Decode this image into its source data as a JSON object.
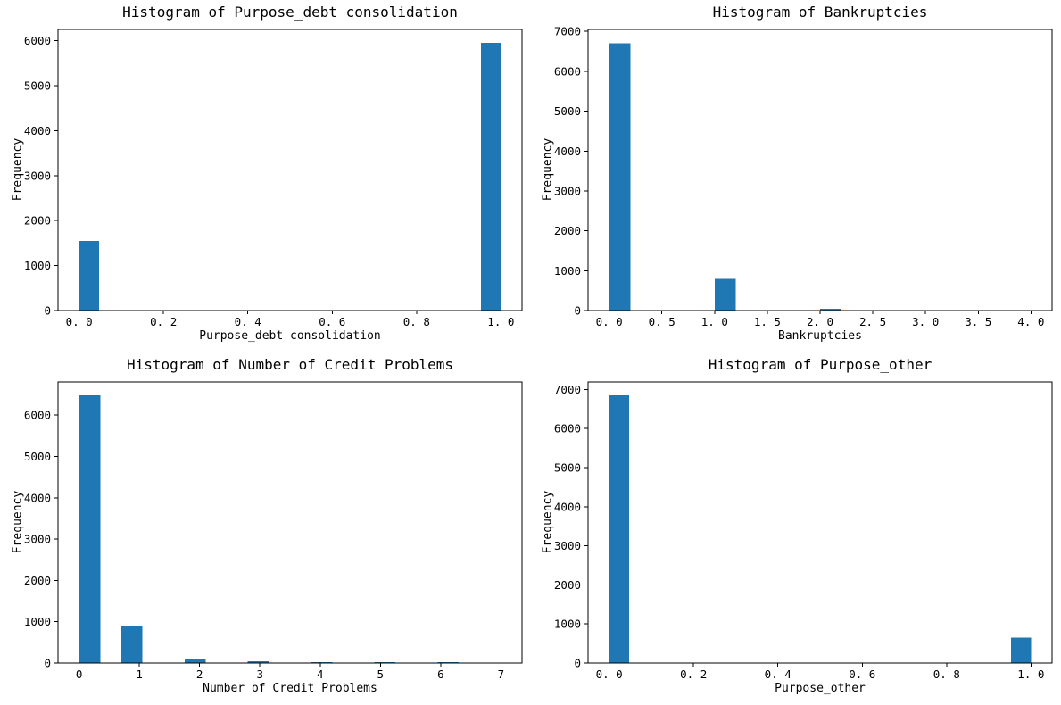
{
  "figure": {
    "background": "#ffffff",
    "bar_color": "#1f77b4",
    "axis_color": "#000000",
    "layout": "2x2-grid",
    "grid": "off",
    "legend": "none"
  },
  "chart_data": [
    {
      "type": "bar",
      "title": "Histogram of Purpose_debt consolidation",
      "xlabel": "Purpose_debt consolidation",
      "ylabel": "Frequency",
      "xlim": [
        -0.05,
        1.05
      ],
      "ylim": [
        0,
        6248
      ],
      "xticks": {
        "values": [
          0.0,
          0.2,
          0.4,
          0.6,
          0.8,
          1.0
        ],
        "labels": [
          "0. 0",
          "0. 2",
          "0. 4",
          "0. 6",
          "0. 8",
          "1. 0"
        ]
      },
      "yticks": {
        "values": [
          0,
          1000,
          2000,
          3000,
          4000,
          5000,
          6000
        ],
        "labels": [
          "0",
          "1000",
          "2000",
          "3000",
          "4000",
          "5000",
          "6000"
        ]
      },
      "bars": [
        {
          "x0": 0.0,
          "x1": 0.0476,
          "count": 1550
        },
        {
          "x0": 0.9524,
          "x1": 1.0,
          "count": 5950
        }
      ],
      "data_summary": {
        "categories": [
          0,
          1
        ],
        "counts": [
          1550,
          5950
        ]
      }
    },
    {
      "type": "bar",
      "title": "Histogram of Bankruptcies",
      "xlabel": "Bankruptcies",
      "ylabel": "Frequency",
      "xlim": [
        -0.2,
        4.2
      ],
      "ylim": [
        0,
        7050
      ],
      "xticks": {
        "values": [
          0.0,
          0.5,
          1.0,
          1.5,
          2.0,
          2.5,
          3.0,
          3.5,
          4.0
        ],
        "labels": [
          "0. 0",
          "0. 5",
          "1. 0",
          "1. 5",
          "2. 0",
          "2. 5",
          "3. 0",
          "3. 5",
          "4. 0"
        ]
      },
      "yticks": {
        "values": [
          0,
          1000,
          2000,
          3000,
          4000,
          5000,
          6000,
          7000
        ],
        "labels": [
          "0",
          "1000",
          "2000",
          "3000",
          "4000",
          "5000",
          "6000",
          "7000"
        ]
      },
      "bars": [
        {
          "x0": 0.0,
          "x1": 0.2,
          "count": 6700
        },
        {
          "x0": 1.0,
          "x1": 1.2,
          "count": 800
        },
        {
          "x0": 2.0,
          "x1": 2.2,
          "count": 40
        }
      ],
      "data_summary": {
        "categories": [
          0,
          1,
          2
        ],
        "counts": [
          6700,
          800,
          40
        ]
      }
    },
    {
      "type": "bar",
      "title": "Histogram of Number of Credit Problems",
      "xlabel": "Number of Credit Problems",
      "ylabel": "Frequency",
      "xlim": [
        -0.35,
        7.35
      ],
      "ylim": [
        0,
        6804
      ],
      "xticks": {
        "values": [
          0,
          1,
          2,
          3,
          4,
          5,
          6,
          7
        ],
        "labels": [
          "0",
          "1",
          "2",
          "3",
          "4",
          "5",
          "6",
          "7"
        ]
      },
      "yticks": {
        "values": [
          0,
          1000,
          2000,
          3000,
          4000,
          5000,
          6000
        ],
        "labels": [
          "0",
          "1000",
          "2000",
          "3000",
          "4000",
          "5000",
          "6000"
        ]
      },
      "bars": [
        {
          "x0": 0.0,
          "x1": 0.35,
          "count": 6480
        },
        {
          "x0": 0.7,
          "x1": 1.05,
          "count": 900
        },
        {
          "x0": 1.75,
          "x1": 2.1,
          "count": 100
        },
        {
          "x0": 2.8,
          "x1": 3.15,
          "count": 40
        },
        {
          "x0": 3.85,
          "x1": 4.2,
          "count": 20
        },
        {
          "x0": 4.9,
          "x1": 5.25,
          "count": 25
        },
        {
          "x0": 5.95,
          "x1": 6.3,
          "count": 25
        }
      ],
      "data_summary": {
        "categories": [
          0,
          1,
          2,
          3,
          4,
          5,
          6
        ],
        "counts": [
          6480,
          900,
          100,
          40,
          20,
          25,
          25
        ]
      }
    },
    {
      "type": "bar",
      "title": "Histogram of Purpose_other",
      "xlabel": "Purpose_other",
      "ylabel": "Frequency",
      "xlim": [
        -0.05,
        1.05
      ],
      "ylim": [
        0,
        7193
      ],
      "xticks": {
        "values": [
          0.0,
          0.2,
          0.4,
          0.6,
          0.8,
          1.0
        ],
        "labels": [
          "0. 0",
          "0. 2",
          "0. 4",
          "0. 6",
          "0. 8",
          "1. 0"
        ]
      },
      "yticks": {
        "values": [
          0,
          1000,
          2000,
          3000,
          4000,
          5000,
          6000,
          7000
        ],
        "labels": [
          "0",
          "1000",
          "2000",
          "3000",
          "4000",
          "5000",
          "6000",
          "7000"
        ]
      },
      "bars": [
        {
          "x0": 0.0,
          "x1": 0.0476,
          "count": 6850
        },
        {
          "x0": 0.9524,
          "x1": 1.0,
          "count": 650
        }
      ],
      "data_summary": {
        "categories": [
          0,
          1
        ],
        "counts": [
          6850,
          650
        ]
      }
    }
  ]
}
